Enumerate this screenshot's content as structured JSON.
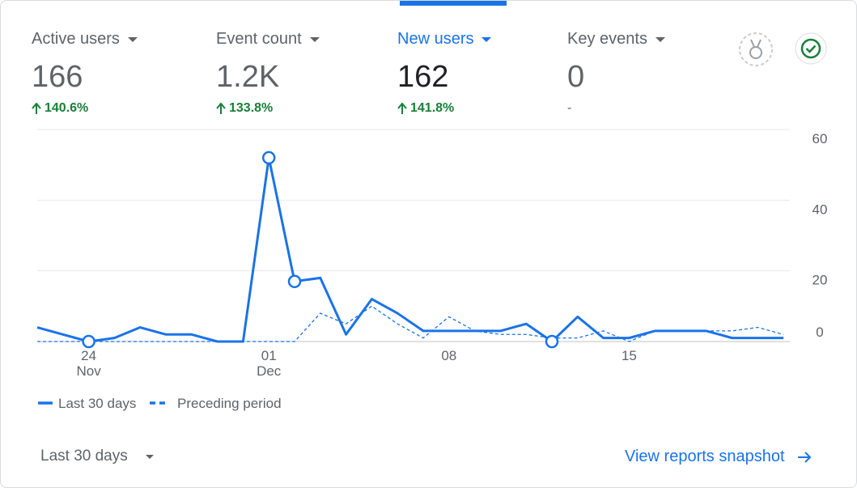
{
  "metrics": [
    {
      "name": "Active users",
      "value": "166",
      "change": "140.6%"
    },
    {
      "name": "Event count",
      "value": "1.2K",
      "change": "133.8%"
    },
    {
      "name": "New users",
      "value": "162",
      "change": "141.8%"
    },
    {
      "name": "Key events",
      "value": "0",
      "change": "-"
    }
  ],
  "selected_metric": 2,
  "chart_data": {
    "type": "line",
    "categories": [
      null,
      null,
      "24",
      null,
      null,
      null,
      null,
      null,
      null,
      "01",
      null,
      null,
      null,
      null,
      null,
      null,
      "08",
      null,
      null,
      null,
      null,
      null,
      null,
      "15",
      null,
      null,
      null,
      null,
      null,
      null
    ],
    "category_months": [
      null,
      null,
      "Nov",
      null,
      null,
      null,
      null,
      null,
      null,
      "Dec",
      null,
      null,
      null,
      null,
      null,
      null,
      null,
      null,
      null,
      null,
      null,
      null,
      null,
      null,
      null,
      null,
      null,
      null,
      null,
      null
    ],
    "series": [
      {
        "name": "Last 30 days",
        "color": "#1a73e8",
        "dashed": false,
        "values": [
          4,
          2,
          0,
          1,
          4,
          2,
          2,
          0,
          0,
          52,
          17,
          18,
          2,
          12,
          8,
          3,
          3,
          3,
          3,
          5,
          0,
          7,
          1,
          1,
          3,
          3,
          3,
          1,
          1,
          1
        ]
      },
      {
        "name": "Preceding period",
        "color": "#1a73e8",
        "dashed": true,
        "values": [
          0,
          0,
          0,
          0,
          0,
          0,
          0,
          0,
          0,
          0,
          0,
          8,
          5,
          10,
          5,
          1,
          7,
          3,
          2,
          2,
          1,
          1,
          3,
          0,
          3,
          3,
          3,
          3,
          4,
          2
        ]
      }
    ],
    "markers": [
      2,
      9,
      10,
      20
    ],
    "ylim": [
      0,
      60
    ],
    "yticks": [
      0,
      20,
      40,
      60
    ],
    "grid": true
  },
  "footer": {
    "range": "Last 30 days",
    "link": "View reports snapshot"
  }
}
